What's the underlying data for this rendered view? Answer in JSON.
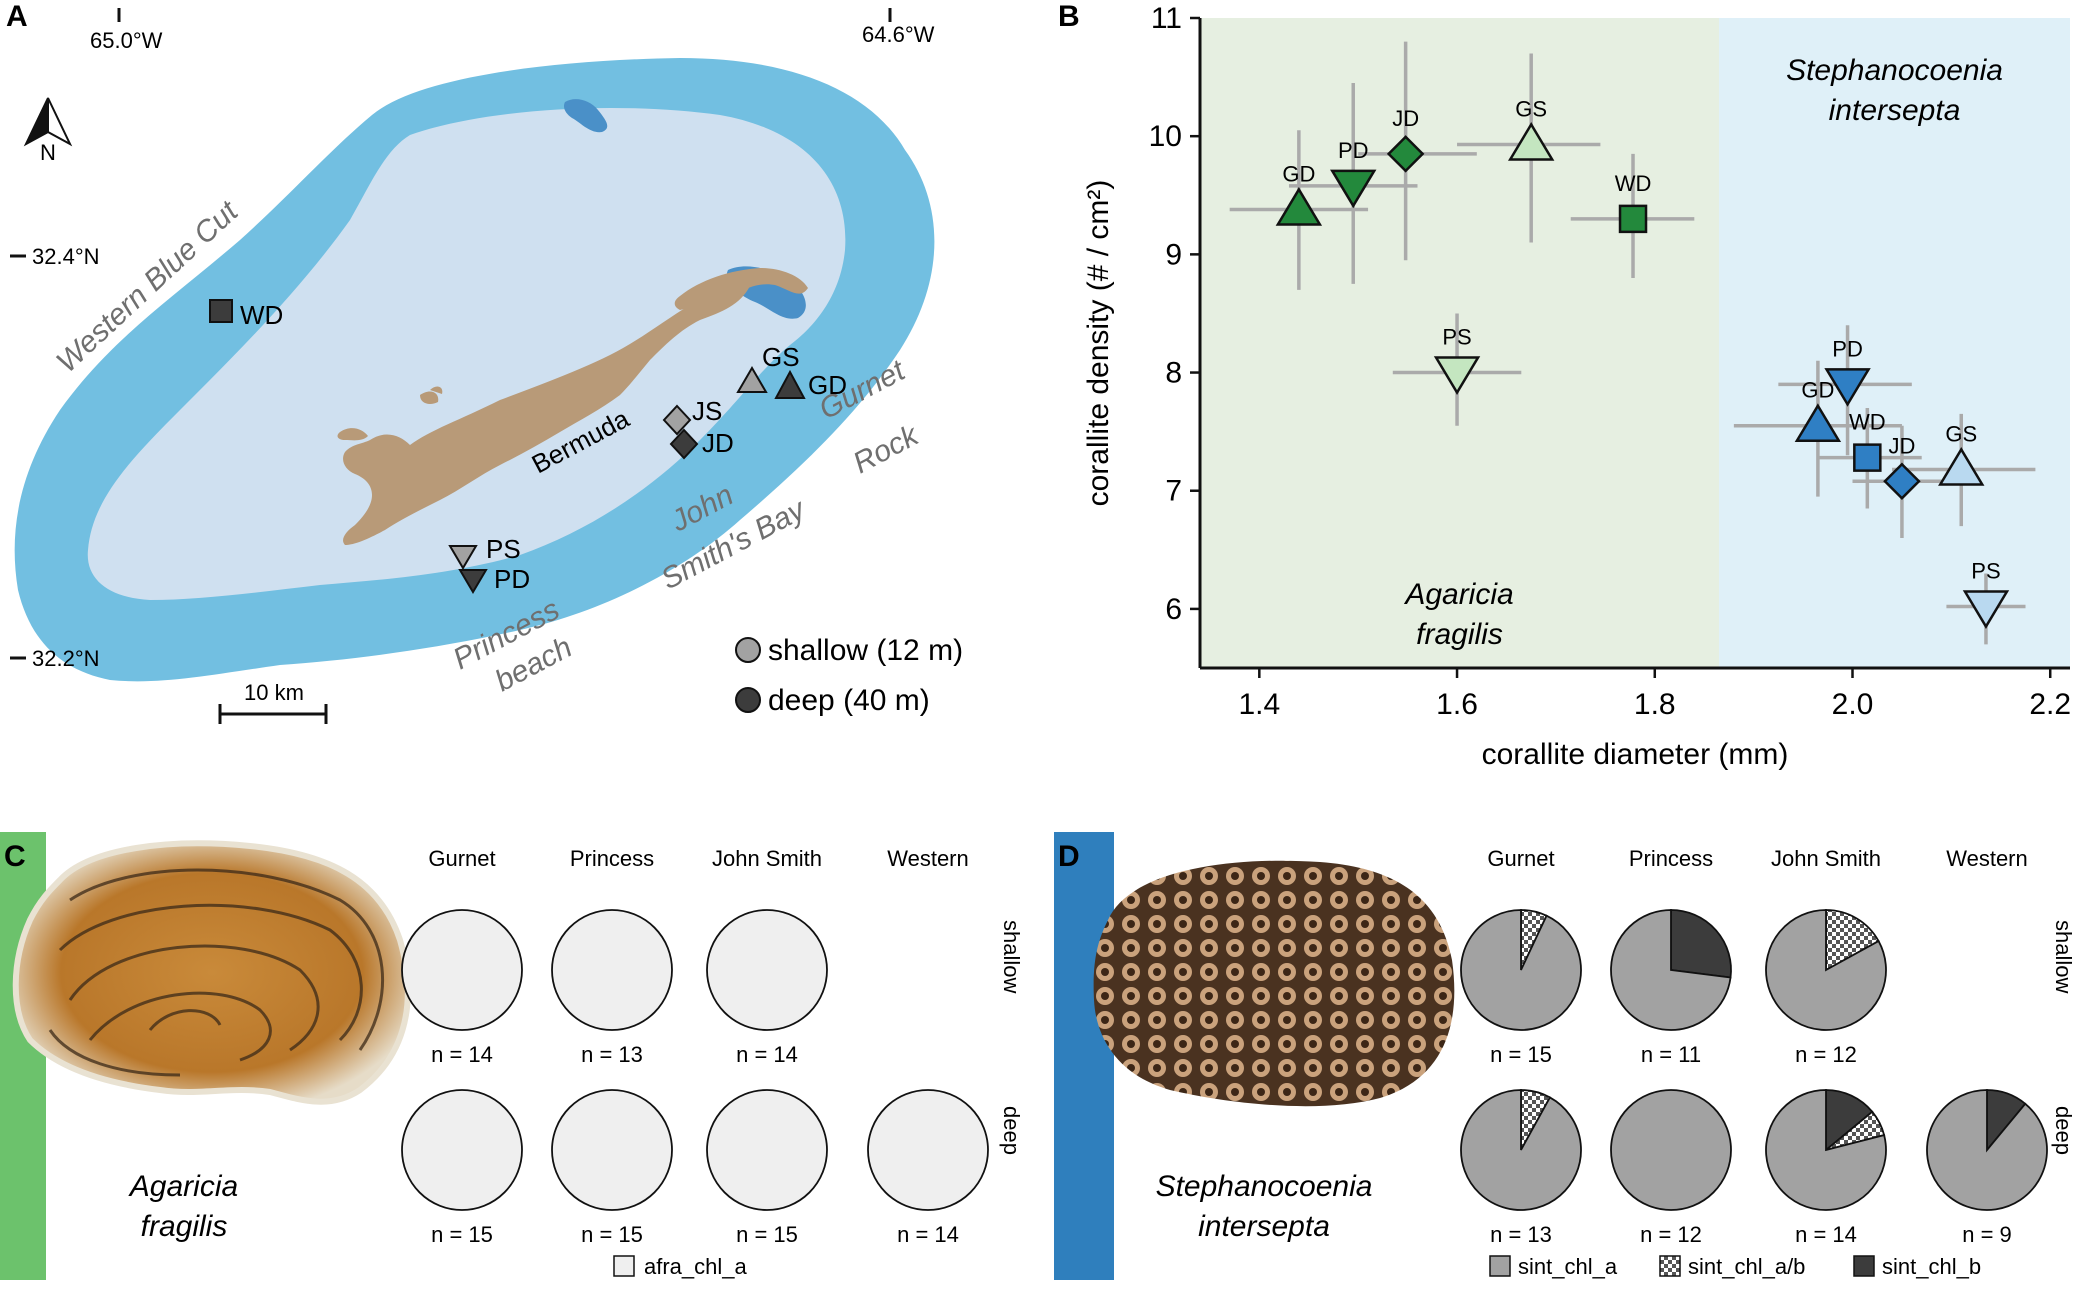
{
  "panels": {
    "a": "A",
    "b": "B",
    "c": "C",
    "d": "D"
  },
  "map": {
    "lon_labels": [
      "65.0°W",
      "64.6°W"
    ],
    "lat_labels": [
      "32.4°N",
      "32.2°N"
    ],
    "north": "N",
    "island": "Bermuda",
    "regions": {
      "western": "Western Blue Cut",
      "gurnet_1": "Gurnet",
      "gurnet_2": "Rock",
      "john_1": "John",
      "john_2": "Smith's Bay",
      "princess_1": "Princess",
      "princess_2": "beach"
    },
    "sites": {
      "wd": "WD",
      "gs": "GS",
      "gd": "GD",
      "js": "JS",
      "jd": "JD",
      "ps": "PS",
      "pd": "PD"
    },
    "legend": {
      "shallow": "shallow (12 m)",
      "deep": "deep (40 m)"
    },
    "scalebar": "10 km",
    "colors": {
      "land": "#b89a78",
      "lagoon": "#cfe0f0",
      "reef": "#72bfe1",
      "inner": "#4a90c8"
    }
  },
  "chart_data": {
    "type": "scatter",
    "xlabel": "corallite diameter (mm)",
    "ylabel": "corallite density (# / cm²)",
    "xlim": [
      1.34,
      2.22
    ],
    "ylim": [
      5.5,
      11
    ],
    "xticks": [
      "1.4",
      "1.6",
      "1.8",
      "2.0",
      "2.2"
    ],
    "yticks": [
      "6",
      "7",
      "8",
      "9",
      "10",
      "11"
    ],
    "region_split": 1.865,
    "region_labels": {
      "agaricia_1": "Agaricia",
      "agaricia_2": "fragilis",
      "steph_1": "Stephanocoenia",
      "steph_2": "intersepta"
    },
    "colors": {
      "agaricia_bg": "#e6efe1",
      "steph_bg": "#dff0f8",
      "errbar": "#aaaaaa"
    },
    "series": [
      {
        "species": "Agaricia fragilis",
        "points": [
          {
            "label": "GD",
            "shape": "triangle-up",
            "color": "#23893c",
            "x": 1.44,
            "y": 9.38,
            "xerr": [
              1.37,
              1.51
            ],
            "yerr": [
              8.7,
              10.05
            ]
          },
          {
            "label": "PD",
            "shape": "triangle-down",
            "color": "#23893c",
            "x": 1.495,
            "y": 9.58,
            "xerr": [
              1.43,
              1.56
            ],
            "yerr": [
              8.75,
              10.45
            ]
          },
          {
            "label": "JD",
            "shape": "diamond",
            "color": "#23893c",
            "x": 1.548,
            "y": 9.85,
            "xerr": [
              1.5,
              1.62
            ],
            "yerr": [
              8.95,
              10.8
            ]
          },
          {
            "label": "GS",
            "shape": "triangle-up",
            "color": "#c4e6c0",
            "x": 1.675,
            "y": 9.93,
            "xerr": [
              1.6,
              1.745
            ],
            "yerr": [
              9.1,
              10.7
            ]
          },
          {
            "label": "WD",
            "shape": "square",
            "color": "#23893c",
            "x": 1.778,
            "y": 9.3,
            "xerr": [
              1.715,
              1.84
            ],
            "yerr": [
              8.8,
              9.85
            ]
          },
          {
            "label": "PS",
            "shape": "triangle-down",
            "color": "#c4e6c0",
            "x": 1.6,
            "y": 8.0,
            "xerr": [
              1.535,
              1.665
            ],
            "yerr": [
              7.55,
              8.5
            ]
          }
        ]
      },
      {
        "species": "Stephanocoenia intersepta",
        "points": [
          {
            "label": "PD",
            "shape": "triangle-down",
            "color": "#2f7fc4",
            "x": 1.995,
            "y": 7.9,
            "xerr": [
              1.925,
              2.06
            ],
            "yerr": [
              7.3,
              8.4
            ]
          },
          {
            "label": "GD",
            "shape": "triangle-up",
            "color": "#2f7fc4",
            "x": 1.965,
            "y": 7.55,
            "xerr": [
              1.88,
              2.05
            ],
            "yerr": [
              6.95,
              8.1
            ]
          },
          {
            "label": "WD",
            "shape": "square",
            "color": "#2f7fc4",
            "x": 2.015,
            "y": 7.28,
            "xerr": [
              1.965,
              2.07
            ],
            "yerr": [
              6.85,
              7.7
            ]
          },
          {
            "label": "JD",
            "shape": "diamond",
            "color": "#2f7fc4",
            "x": 2.05,
            "y": 7.08,
            "xerr": [
              2.0,
              2.1
            ],
            "yerr": [
              6.6,
              7.55
            ]
          },
          {
            "label": "GS",
            "shape": "triangle-up",
            "color": "#b9d9f0",
            "x": 2.11,
            "y": 7.18,
            "xerr": [
              2.04,
              2.185
            ],
            "yerr": [
              6.7,
              7.65
            ]
          },
          {
            "label": "PS",
            "shape": "triangle-down",
            "color": "#b9d9f0",
            "x": 2.135,
            "y": 6.02,
            "xerr": [
              2.095,
              2.175
            ],
            "yerr": [
              5.7,
              6.3
            ]
          }
        ]
      }
    ]
  },
  "panel_c": {
    "species_1": "Agaricia",
    "species_2": "fragilis",
    "columns": [
      "Gurnet",
      "Princess",
      "John Smith",
      "Western"
    ],
    "rows": [
      "shallow",
      "deep"
    ],
    "pies": [
      {
        "row": 0,
        "col": 0,
        "n": "n = 14",
        "slices": [
          1,
          0,
          0
        ]
      },
      {
        "row": 0,
        "col": 1,
        "n": "n = 13",
        "slices": [
          1,
          0,
          0
        ]
      },
      {
        "row": 0,
        "col": 2,
        "n": "n = 14",
        "slices": [
          1,
          0,
          0
        ]
      },
      {
        "row": 1,
        "col": 0,
        "n": "n = 15",
        "slices": [
          1,
          0,
          0
        ]
      },
      {
        "row": 1,
        "col": 1,
        "n": "n = 15",
        "slices": [
          1,
          0,
          0
        ]
      },
      {
        "row": 1,
        "col": 2,
        "n": "n = 15",
        "slices": [
          1,
          0,
          0
        ]
      },
      {
        "row": 1,
        "col": 3,
        "n": "n = 14",
        "slices": [
          1,
          0,
          0
        ]
      }
    ],
    "legend": [
      "afra_chl_a"
    ],
    "colors": {
      "bar": "#6cc26c",
      "pie": "#efefef"
    }
  },
  "panel_d": {
    "species_1": "Stephanocoenia",
    "species_2": "intersepta",
    "columns": [
      "Gurnet",
      "Princess",
      "John Smith",
      "Western"
    ],
    "rows": [
      "shallow",
      "deep"
    ],
    "pies": [
      {
        "row": 0,
        "col": 0,
        "n": "n = 15",
        "slices": [
          0.93,
          0.07,
          0
        ]
      },
      {
        "row": 0,
        "col": 1,
        "n": "n = 11",
        "slices": [
          0.73,
          0,
          0.27
        ]
      },
      {
        "row": 0,
        "col": 2,
        "n": "n = 12",
        "slices": [
          0.83,
          0.17,
          0
        ]
      },
      {
        "row": 1,
        "col": 0,
        "n": "n = 13",
        "slices": [
          0.92,
          0.08,
          0
        ]
      },
      {
        "row": 1,
        "col": 1,
        "n": "n = 12",
        "slices": [
          1,
          0,
          0
        ]
      },
      {
        "row": 1,
        "col": 2,
        "n": "n = 14",
        "slices": [
          0.79,
          0.07,
          0.14
        ]
      },
      {
        "row": 1,
        "col": 3,
        "n": "n = 9",
        "slices": [
          0.89,
          0,
          0.11
        ]
      }
    ],
    "legend": [
      "sint_chl_a",
      "sint_chl_a/b",
      "sint_chl_b"
    ],
    "colors": {
      "bar": "#2f7fbd",
      "a": "#a2a2a2",
      "b": "#3c3c3c"
    }
  }
}
